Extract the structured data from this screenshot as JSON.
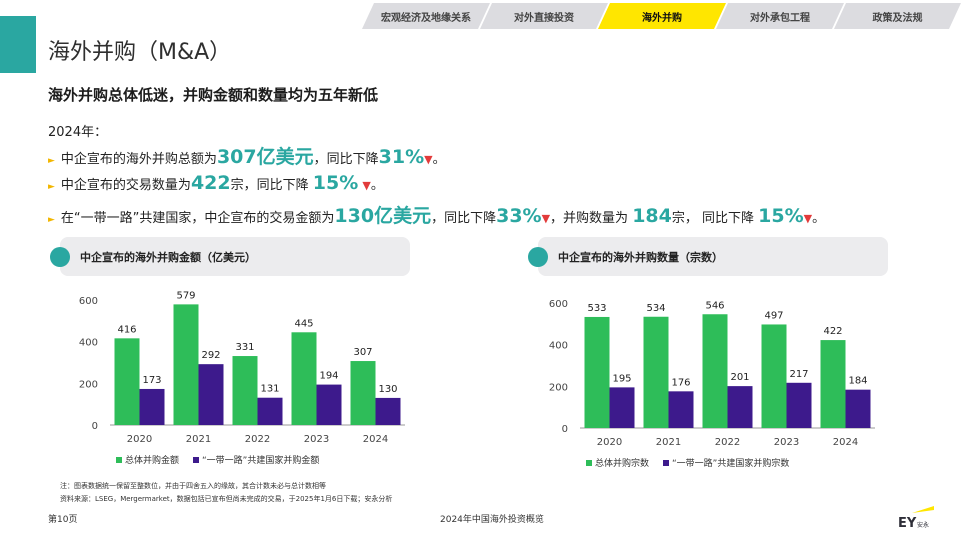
{
  "tabs": [
    {
      "label": "宏观经济及地缘关系",
      "active": false
    },
    {
      "label": "对外直接投资",
      "active": false
    },
    {
      "label": "海外并购",
      "active": true
    },
    {
      "label": "对外承包工程",
      "active": false
    },
    {
      "label": "政策及法规",
      "active": false
    }
  ],
  "page_title": "海外并购（M&A）",
  "headline": "海外并购总体低迷，并购金额和数量均为五年新低",
  "year_label": "2024年：",
  "bullets": {
    "b1": {
      "pre": "中企宣布的海外并购总额为",
      "big1": "307亿美元",
      "mid": "，同比下降",
      "big2": "31%",
      "tail": "。"
    },
    "b2": {
      "pre": "中企宣布的交易数量为",
      "big1": "422",
      "mid": "宗，同比下降 ",
      "big2": "15%",
      "tail": "。"
    },
    "b3": {
      "pre": "在“一带一路”共建国家，中企宣布的交易金额为",
      "big1": "130亿美元",
      "mid": "，同比下降",
      "big2": "33%",
      "mid2": "，并购数量为 ",
      "big3": "184",
      "mid3": "宗， 同比下降 ",
      "big4": "15%",
      "tail": "。"
    }
  },
  "down_arrow": "▼",
  "bullet_marker": "►",
  "panel1_title": "中企宣布的海外并购金额（亿美元）",
  "panel2_title": "中企宣布的海外并购数量（宗数）",
  "colors": {
    "green": "#2ebd59",
    "purple": "#3d1a8c",
    "teal": "#2aa7a1",
    "yellow": "#ffe600"
  },
  "chart_data": [
    {
      "type": "bar",
      "categories": [
        "2020",
        "2021",
        "2022",
        "2023",
        "2024"
      ],
      "series": [
        {
          "name": "总体并购金额",
          "values": [
            416,
            579,
            331,
            445,
            307
          ]
        },
        {
          "name": "“一带一路”共建国家并购金额",
          "values": [
            173,
            292,
            131,
            194,
            130
          ]
        }
      ],
      "ylim": [
        0,
        600
      ],
      "yticks": [
        0,
        200,
        400,
        600
      ],
      "legend": "bottom"
    },
    {
      "type": "bar",
      "categories": [
        "2020",
        "2021",
        "2022",
        "2023",
        "2024"
      ],
      "series": [
        {
          "name": "总体并购宗数",
          "values": [
            533,
            534,
            546,
            497,
            422
          ]
        },
        {
          "name": "“一带一路”共建国家并购宗数",
          "values": [
            195,
            176,
            201,
            217,
            184
          ]
        }
      ],
      "ylim": [
        0,
        600
      ],
      "yticks": [
        0,
        200,
        400,
        600
      ],
      "legend": "bottom"
    }
  ],
  "note1": "注：图表数据统一保留至整数位，并由于四舍五入的缘故，其合计数未必与总计数相等",
  "note2": "资料来源：LSEG，Mergermarket，数据包括已宣布但尚未完成的交易，于2025年1月6日下载；安永分析",
  "footer_page": "第10页",
  "footer_title": "2024年中国海外投资概览",
  "logo_text": "EY",
  "logo_sub": "安永"
}
